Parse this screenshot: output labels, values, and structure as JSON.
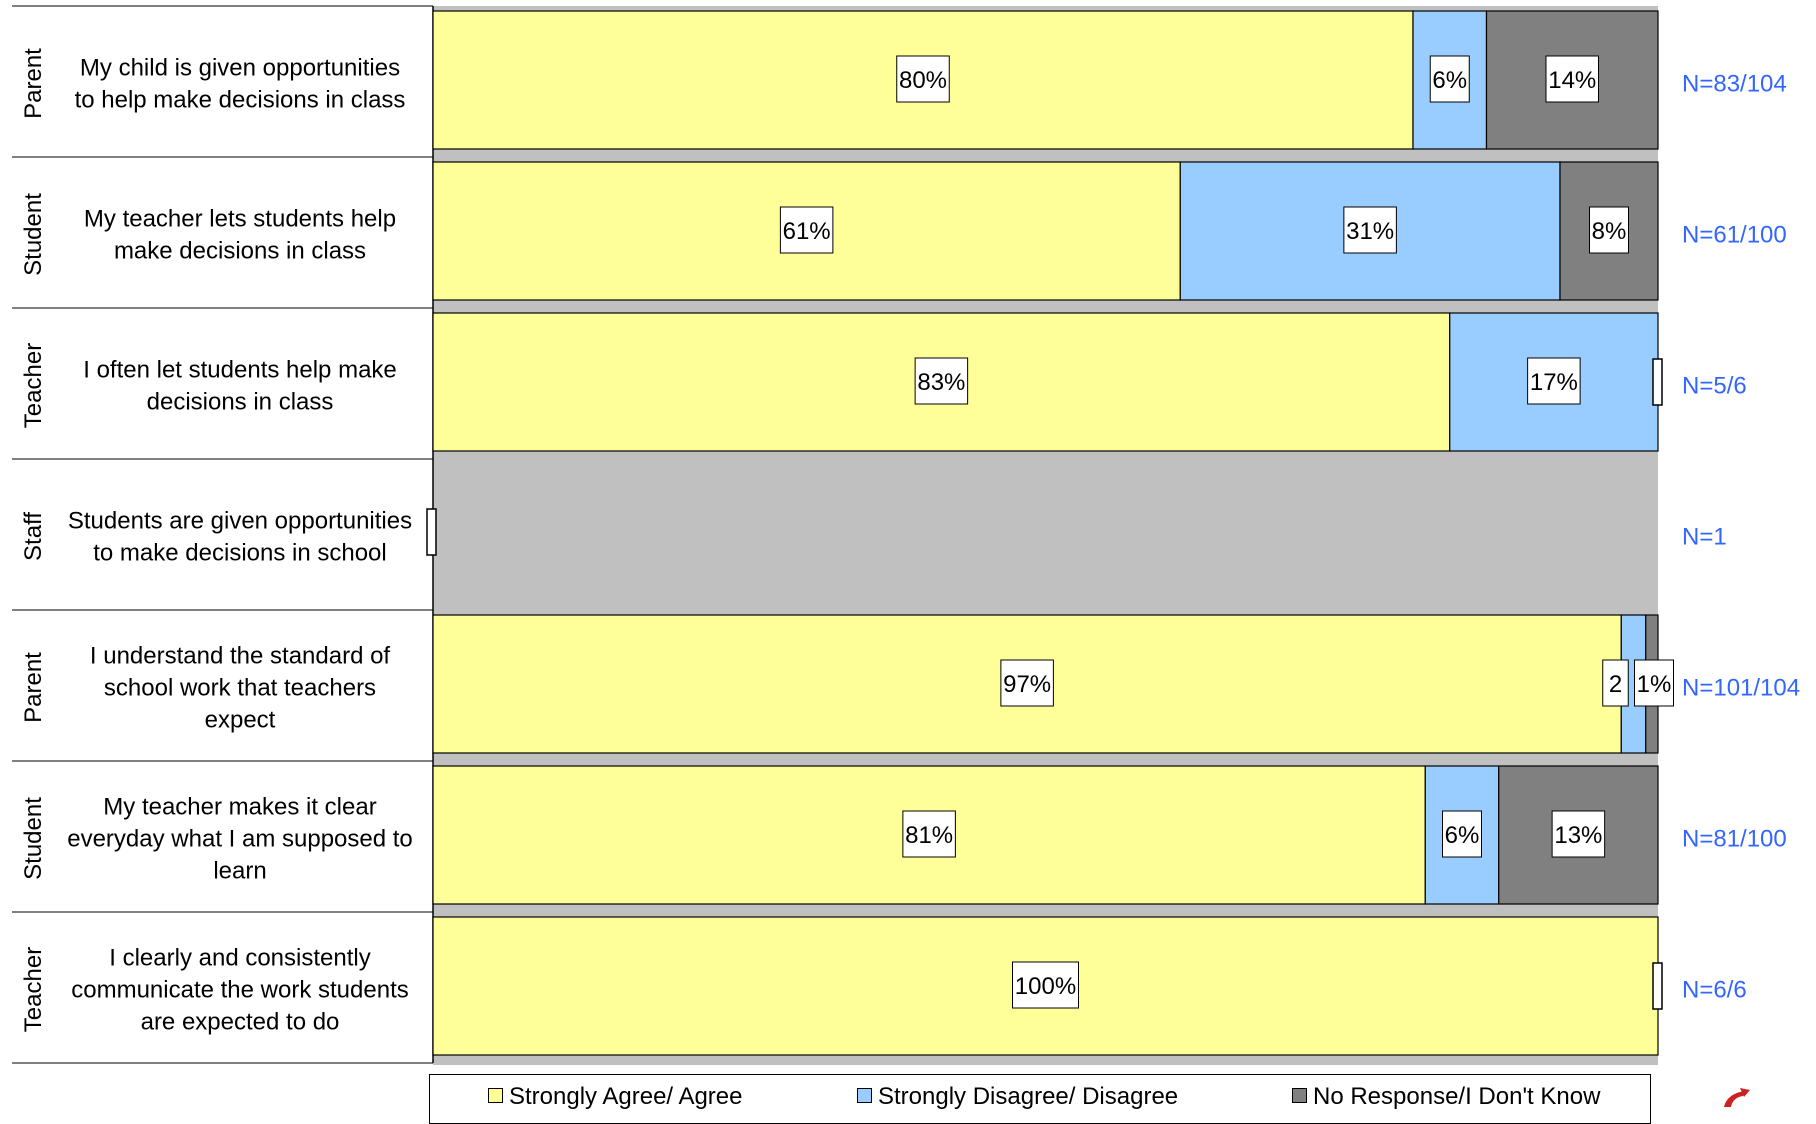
{
  "chart_data": {
    "type": "bar",
    "orientation": "horizontal",
    "stacked": true,
    "rows": [
      {
        "group": "Parent",
        "question": "My child is given opportunities to help make decisions in class",
        "lines": [
          "My child is given opportunities",
          "to help make decisions in class"
        ],
        "values": [
          80,
          6,
          14
        ],
        "labels": [
          "80%",
          "6%",
          "14%"
        ],
        "n": "N=83/104"
      },
      {
        "group": "Student",
        "question": "My teacher lets students help make decisions in class",
        "lines": [
          "My teacher lets students help",
          "make decisions in class"
        ],
        "values": [
          61,
          31,
          8
        ],
        "labels": [
          "61%",
          "31%",
          "8%"
        ],
        "n": "N=61/100"
      },
      {
        "group": "Teacher",
        "question": "I often let students help make decisions in class",
        "lines": [
          "I often let students help make",
          "decisions in class"
        ],
        "values": [
          83,
          17,
          0
        ],
        "labels": [
          "83%",
          "17%",
          ""
        ],
        "n": "N=5/6"
      },
      {
        "group": "Staff",
        "question": "Students are given opportunities to make decisions in school",
        "lines": [
          "Students are given opportunities",
          "to make decisions in school"
        ],
        "values": [
          0,
          0,
          0
        ],
        "labels": [
          "",
          "",
          ""
        ],
        "n": "N=1"
      },
      {
        "group": "Parent",
        "question": "I understand the standard of school work that teachers expect",
        "lines": [
          "I understand the standard of",
          "school work that teachers",
          "expect"
        ],
        "values": [
          97,
          2,
          1
        ],
        "labels": [
          "97%",
          "2",
          "1%"
        ],
        "n": "N=101/104"
      },
      {
        "group": "Student",
        "question": "My teacher makes it clear everyday what I am supposed to learn",
        "lines": [
          "My teacher makes it clear",
          "everyday what I am supposed to",
          "learn"
        ],
        "values": [
          81,
          6,
          13
        ],
        "labels": [
          "81%",
          "6%",
          "13%"
        ],
        "n": "N=81/100"
      },
      {
        "group": "Teacher",
        "question": "I clearly and consistently communicate the work students are expected to do",
        "lines": [
          "I clearly and consistently",
          "communicate the work students",
          "are expected to do"
        ],
        "values": [
          100,
          0,
          0
        ],
        "labels": [
          "100%",
          "",
          ""
        ],
        "n": "N=6/6"
      }
    ],
    "series": [
      {
        "name": "Strongly Agree/ Agree",
        "color": "#ffff99"
      },
      {
        "name": "Strongly Disagree/ Disagree",
        "color": "#99ccff"
      },
      {
        "name": "No Response/I Don't Know",
        "color": "#808080"
      }
    ],
    "xlim": [
      0,
      100
    ],
    "grid": false,
    "legend_position": "bottom",
    "colors": {
      "plot_background": "#c0c0c0",
      "n_label": "#3366ff"
    }
  }
}
